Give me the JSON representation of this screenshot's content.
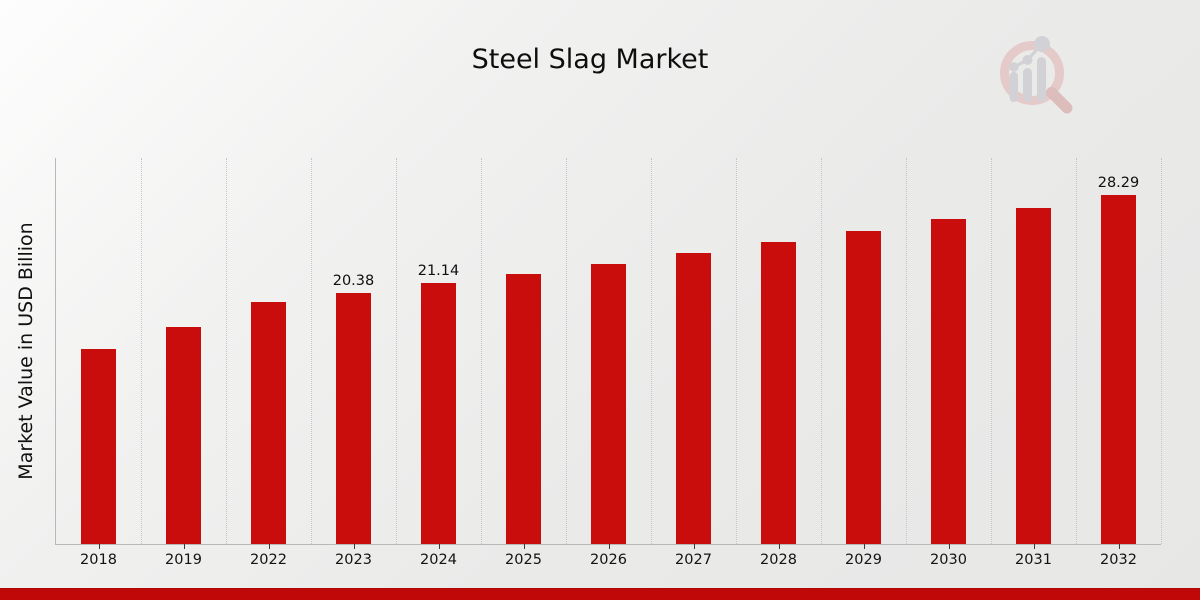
{
  "header": {
    "title": "Steel Slag Market"
  },
  "chart_data": {
    "type": "bar",
    "title": "Steel Slag Market",
    "xlabel": "",
    "ylabel": "Market Value in USD Billion",
    "categories": [
      "2018",
      "2019",
      "2022",
      "2023",
      "2024",
      "2025",
      "2026",
      "2027",
      "2028",
      "2029",
      "2030",
      "2031",
      "2032"
    ],
    "values": [
      15.78,
      17.64,
      19.66,
      20.38,
      21.14,
      21.93,
      22.74,
      23.59,
      24.47,
      25.38,
      26.32,
      27.29,
      28.29
    ],
    "bar_labels": [
      "",
      "",
      "",
      "20.38",
      "21.14",
      "",
      "",
      "",
      "",
      "",
      "",
      "",
      "28.29"
    ],
    "ylim": [
      0,
      31.3
    ],
    "grid": "vertical dotted lines between categories",
    "legend": "none",
    "bar_color": "#C90D0D"
  },
  "footer": {
    "band_color": "#C00808"
  },
  "logo": {
    "name": "magnifier-bar-chart-watermark",
    "ring_color": "#e5caca",
    "handle_color": "#ddbcbc",
    "bars_color": "#d2d2d6"
  }
}
